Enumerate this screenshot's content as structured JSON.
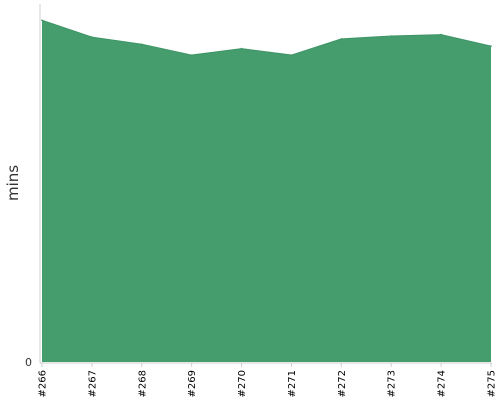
{
  "chart_data": {
    "type": "area",
    "categories": [
      "#266",
      "#267",
      "#268",
      "#269",
      "#270",
      "#271",
      "#272",
      "#273",
      "#274",
      "#275"
    ],
    "series": [
      {
        "values": [
          95.2,
          90.5,
          88.5,
          85.5,
          87.3,
          85.5,
          90.0,
          90.8,
          91.2,
          88.0
        ]
      }
    ],
    "xlabel": "",
    "ylabel": "mins",
    "ylim": [
      0,
      100
    ],
    "y_ticks": [
      "0"
    ],
    "grid": false,
    "colors": {
      "area": "#459d6d",
      "area_line": "#3e9566"
    }
  }
}
